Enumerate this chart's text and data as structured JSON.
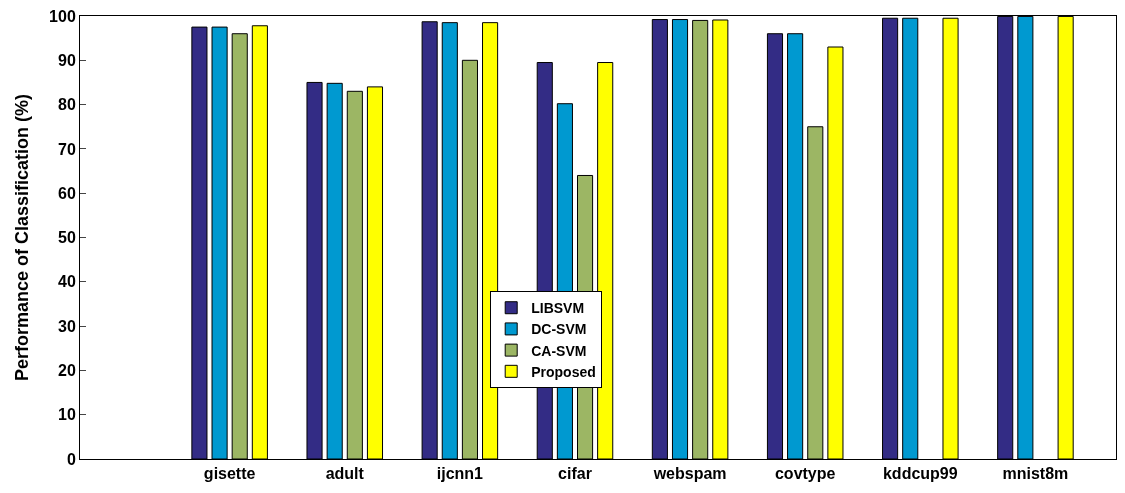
{
  "chart_data": {
    "type": "bar",
    "ylabel": "Performance of Classification (%)",
    "categories": [
      "gisette",
      "adult",
      "ijcnn1",
      "cifar",
      "webspam",
      "covtype",
      "kddcup99",
      "mnist8m"
    ],
    "series": [
      {
        "name": "LIBSVM",
        "color": "#332c85",
        "values": [
          97.5,
          85,
          98.7,
          89.5,
          99.2,
          96,
          99.5,
          99.9
        ]
      },
      {
        "name": "DC-SVM",
        "color": "#0099d0",
        "values": [
          97.5,
          84.8,
          98.5,
          80.2,
          99.2,
          96,
          99.5,
          99.9
        ]
      },
      {
        "name": "CA-SVM",
        "color": "#9cb664",
        "values": [
          96,
          83,
          90,
          64,
          99,
          75,
          null,
          null
        ]
      },
      {
        "name": "Proposed",
        "color": "#ffff00",
        "values": [
          97.8,
          84,
          98.5,
          89.5,
          99.1,
          93,
          99.5,
          99.9
        ]
      }
    ],
    "ylim": [
      0,
      100
    ],
    "yticks": [
      0,
      10,
      20,
      30,
      40,
      50,
      60,
      70,
      80,
      90,
      100
    ],
    "legend": "bottom"
  }
}
